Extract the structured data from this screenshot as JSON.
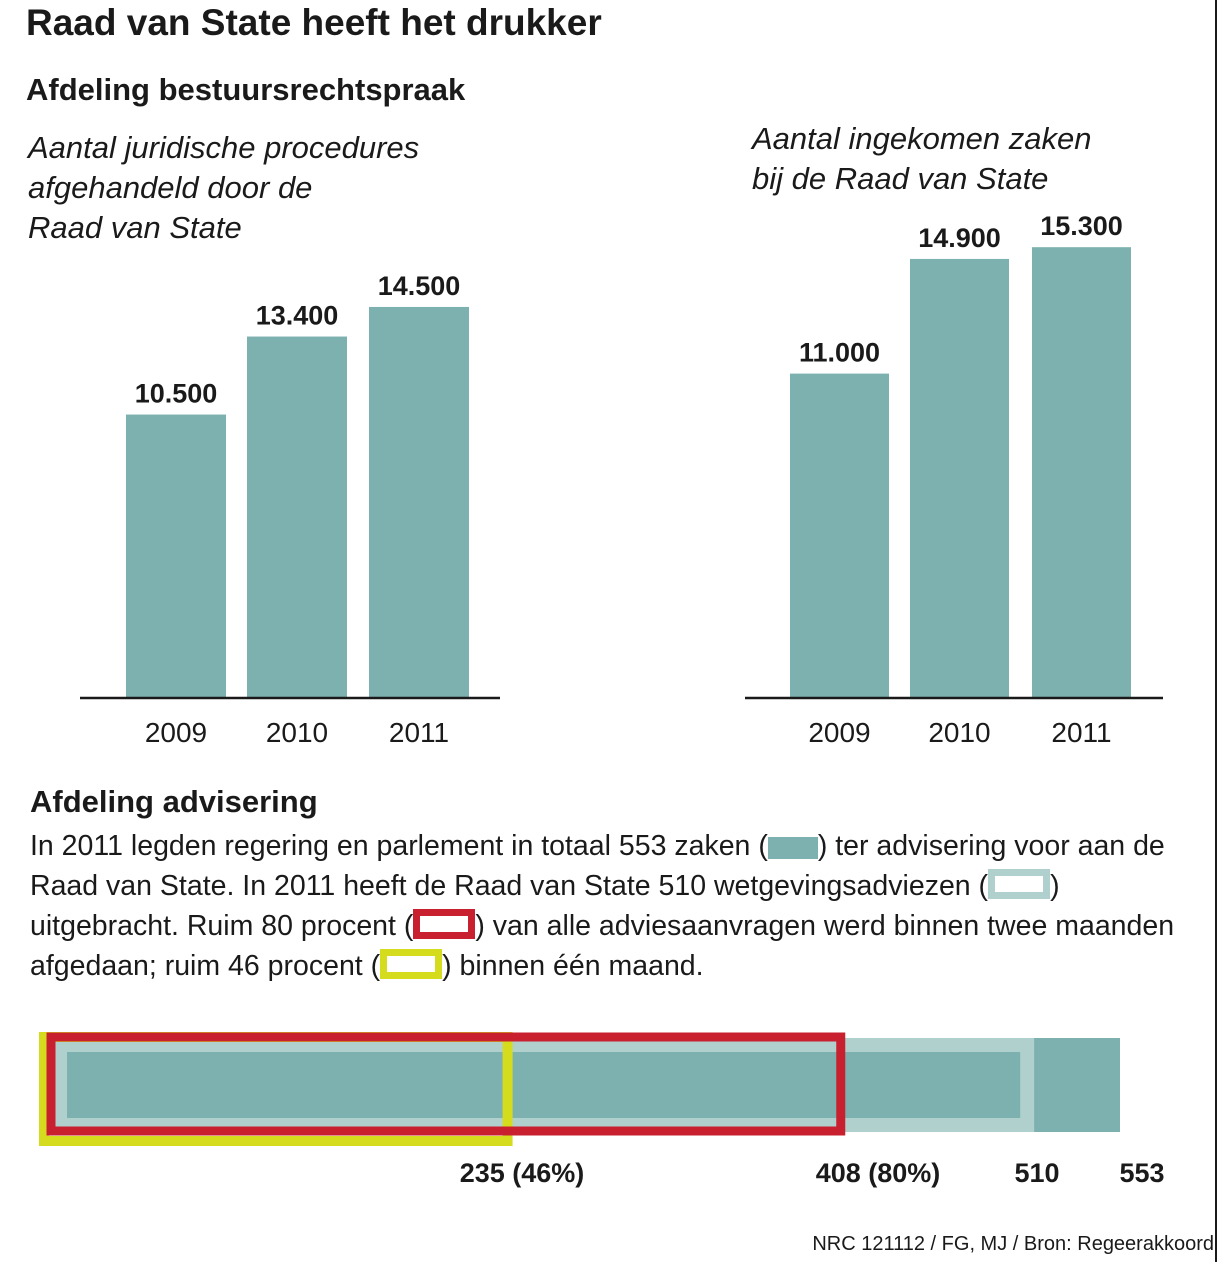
{
  "title": "Raad van State heeft het drukker",
  "section1": {
    "heading": "Afdeling bestuursrechtspraak"
  },
  "section2": {
    "heading": "Afdeling advisering"
  },
  "paragraph": {
    "p1": "In 2011 legden regering en parlement in totaal 553 zaken (",
    "p2": ") ter advisering voor aan de Raad van State. In 2011 heeft de Raad van State 510 wetgevingsadviezen (",
    "p3": ") uitgebracht. Ruim 80 procent (",
    "p4": ") van alle adviesaanvragen werd binnen twee maanden afgedaan; ruim 46 procent (",
    "p5": ") binnen één maand."
  },
  "colors": {
    "bar": "#7cb1af",
    "advice": "#b0d0cd",
    "two_months": "#c8202f",
    "one_month": "#d5dc1e",
    "axis": "#1a1a1a"
  },
  "chart_data": [
    {
      "type": "bar",
      "title": "Aantal juridische procedures\nafgehandeld door de\nRaad van State",
      "categories": [
        "2009",
        "2010",
        "2011"
      ],
      "values": [
        10500,
        13400,
        14500
      ],
      "value_labels": [
        "10.500",
        "13.400",
        "14.500"
      ]
    },
    {
      "type": "bar",
      "title": "Aantal ingekomen zaken\nbij de Raad van State",
      "categories": [
        "2009",
        "2010",
        "2011"
      ],
      "values": [
        11000,
        14900,
        15300
      ],
      "value_labels": [
        "11.000",
        "14.900",
        "15.300"
      ]
    },
    {
      "type": "bar",
      "orientation": "horizontal-nested",
      "total": 553,
      "segments": [
        {
          "name": "zaken",
          "value": 553,
          "label": "553"
        },
        {
          "name": "wetgevingsadviezen",
          "value": 510,
          "label": "510"
        },
        {
          "name": "binnen twee maanden",
          "value": 408,
          "label": "408 (80%)"
        },
        {
          "name": "binnen één maand",
          "value": 235,
          "label": "235 (46%)"
        }
      ]
    }
  ],
  "source": "NRC 121112 / FG, MJ / Bron: Regeerakkoord"
}
